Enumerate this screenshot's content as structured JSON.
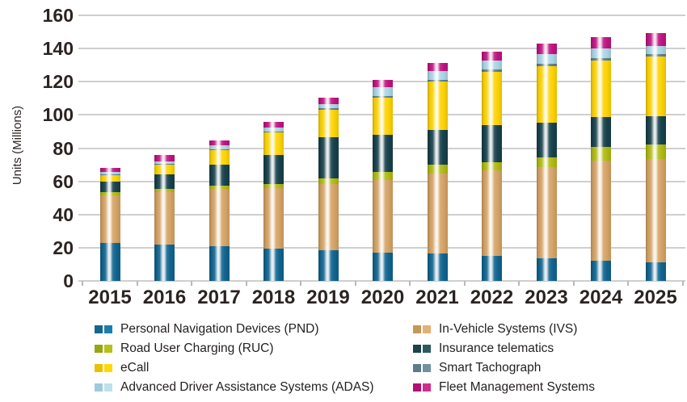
{
  "chart_data": {
    "type": "bar",
    "stacked": true,
    "title": "",
    "xlabel": "",
    "ylabel": "Units (Millions)",
    "ylim": [
      0,
      160
    ],
    "ytick_step": 20,
    "grid": "horizontal",
    "legend_position": "bottom-two-columns",
    "categories": [
      "2015",
      "2016",
      "2017",
      "2018",
      "2019",
      "2020",
      "2021",
      "2022",
      "2023",
      "2024",
      "2025"
    ],
    "series": [
      {
        "name": "Personal Navigation Devices (PND)",
        "color": "#10648f",
        "swatch": [
          "#14678e",
          "#1a7fae"
        ],
        "values": [
          23,
          22,
          21,
          19.5,
          18.5,
          17,
          16.5,
          15,
          13.5,
          12,
          11
        ]
      },
      {
        "name": "In-Vehicle Systems (IVS)",
        "color": "#d5a365",
        "swatch": [
          "#c69755",
          "#e0b273"
        ],
        "values": [
          28.5,
          31.5,
          34.5,
          36.5,
          40,
          44,
          48,
          51.5,
          55,
          60.5,
          62.5
        ]
      },
      {
        "name": "Road User Charging (RUC)",
        "color": "#afba10",
        "swatch": [
          "#9aa513",
          "#b6c216"
        ],
        "values": [
          2,
          2,
          2,
          2.5,
          3.5,
          4.5,
          5.5,
          5,
          6,
          8,
          8.5
        ]
      },
      {
        "name": "Insurance telematics",
        "color": "#17414b",
        "swatch": [
          "#1b4349",
          "#2b5a60"
        ],
        "values": [
          6.5,
          8.5,
          12.5,
          17.5,
          24.5,
          22.5,
          21,
          22.5,
          21,
          18,
          17
        ]
      },
      {
        "name": "eCall",
        "color": "#fdd304",
        "swatch": [
          "#e8c103",
          "#ffd903"
        ],
        "values": [
          4,
          6,
          9,
          13.5,
          16.5,
          22.5,
          29,
          32,
          34,
          34.5,
          36
        ]
      },
      {
        "name": "Smart Tachograph",
        "color": "#5e7d8e",
        "swatch": [
          "#5c7b8b",
          "#72919f"
        ],
        "values": [
          0.3,
          0.5,
          0.5,
          0.5,
          1,
          1,
          1,
          1.2,
          1.2,
          1,
          1.5
        ]
      },
      {
        "name": "Advanced Driver Assistance Systems (ADAS)",
        "color": "#aad5e4",
        "swatch": [
          "#9dcadd",
          "#bfe0ec"
        ],
        "values": [
          1.2,
          1.5,
          2,
          2.5,
          2.5,
          5,
          5.5,
          5.5,
          6,
          6,
          5
        ]
      },
      {
        "name": "Fleet Management Systems",
        "color": "#c01381",
        "swatch": [
          "#b50e74",
          "#ce2d8e"
        ],
        "values": [
          2.5,
          4,
          3,
          3.5,
          4,
          4.5,
          5,
          5.2,
          6.5,
          7,
          8
        ]
      }
    ],
    "legend": {
      "left_column": [
        "Personal Navigation Devices (PND)",
        "Road User Charging (RUC)",
        "eCall",
        "Advanced Driver Assistance Systems (ADAS)"
      ],
      "right_column": [
        "In-Vehicle Systems (IVS)",
        "Insurance telematics",
        "Smart Tachograph",
        "Fleet Management Systems"
      ]
    },
    "y_tick_labels": [
      "0",
      "20",
      "40",
      "60",
      "80",
      "100",
      "120",
      "140",
      "160"
    ]
  },
  "axis_colors": {
    "tick_label": "#2b2422",
    "gridline": "#cfcfcf",
    "legend_text": "#231f20"
  }
}
